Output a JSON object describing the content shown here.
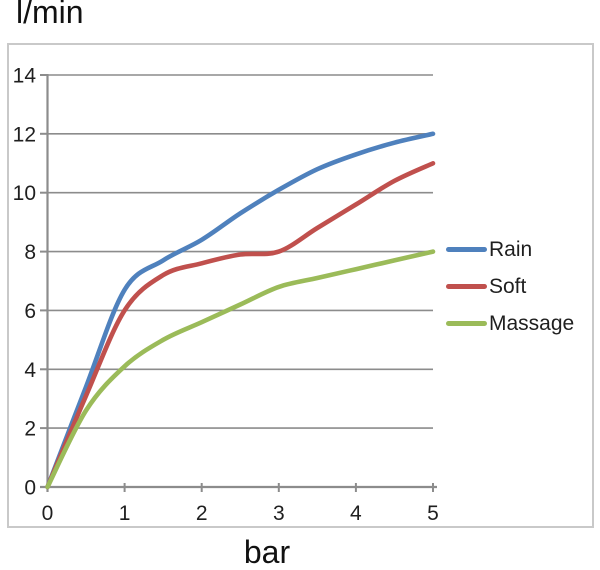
{
  "chart_data": {
    "type": "line",
    "title": "",
    "ylabel": "l/min",
    "xlabel": "bar",
    "xlim": [
      0,
      5
    ],
    "ylim": [
      0,
      14
    ],
    "x_ticks": [
      0,
      1,
      2,
      3,
      4,
      5
    ],
    "y_ticks": [
      0,
      2,
      4,
      6,
      8,
      10,
      12,
      14
    ],
    "grid": "horizontal",
    "legend_position": "right",
    "smooth": true,
    "x": [
      0,
      0.5,
      1,
      1.5,
      2,
      2.5,
      3,
      3.5,
      4,
      4.5,
      5
    ],
    "series": [
      {
        "name": "Rain",
        "color": "#4F81BD",
        "values": [
          0,
          3.4,
          6.7,
          7.7,
          8.4,
          9.3,
          10.1,
          10.8,
          11.3,
          11.7,
          12
        ]
      },
      {
        "name": "Soft",
        "color": "#C0504D",
        "values": [
          0,
          3.1,
          6.0,
          7.2,
          7.6,
          7.9,
          8.0,
          8.8,
          9.6,
          10.4,
          11
        ]
      },
      {
        "name": "Massage",
        "color": "#9BBB59",
        "values": [
          0,
          2.6,
          4.1,
          5.0,
          5.6,
          6.2,
          6.8,
          7.1,
          7.4,
          7.7,
          8
        ]
      }
    ]
  },
  "colors": {
    "gridline": "#8C8C8C",
    "axis": "#8C8C8C",
    "frame": "#C9C9C9",
    "text": "#1F1F1F"
  }
}
